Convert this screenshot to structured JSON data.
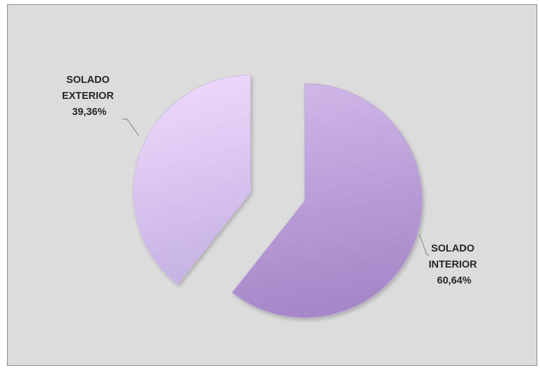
{
  "chart_data": {
    "type": "pie",
    "title": "",
    "exploded": true,
    "slices": [
      {
        "name_lines": [
          "SOLADO",
          "INTERIOR"
        ],
        "value": 60.64,
        "value_label": "60,64%",
        "color_light": "#d2b9ea",
        "color_dark": "#a687c8"
      },
      {
        "name_lines": [
          "SOLADO",
          "EXTERIOR"
        ],
        "value": 39.36,
        "value_label": "39,36%",
        "color_light": "#f1dcfd",
        "color_dark": "#c7b3e5"
      }
    ],
    "leader_color": "#7f7f7f",
    "background": "#dcdcdc"
  }
}
